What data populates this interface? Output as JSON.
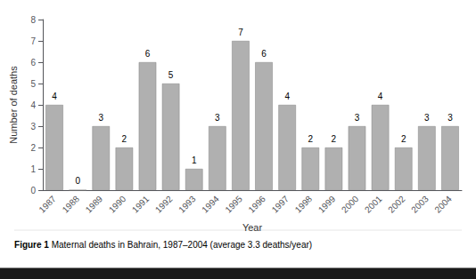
{
  "chart_data": {
    "type": "bar",
    "categories": [
      "1987",
      "1988",
      "1989",
      "1990",
      "1991",
      "1992",
      "1993",
      "1994",
      "1995",
      "1996",
      "1997",
      "1998",
      "1999",
      "2000",
      "2001",
      "2002",
      "2003",
      "2004"
    ],
    "values": [
      4,
      0,
      3,
      2,
      6,
      5,
      1,
      3,
      7,
      6,
      4,
      2,
      2,
      3,
      4,
      2,
      3,
      3
    ],
    "color": "#b0b0b0",
    "x_label": "Year",
    "y_label": "Number of deaths",
    "ylim": [
      0,
      8
    ],
    "yticks": [
      0,
      1,
      2,
      3,
      4,
      5,
      6,
      7,
      8
    ],
    "grid": false,
    "data_labels": true,
    "annotations": [
      "Figure 1",
      "Maternal deaths in Bahrain, 1987–2004 (average 3.3 deaths/year)"
    ]
  }
}
